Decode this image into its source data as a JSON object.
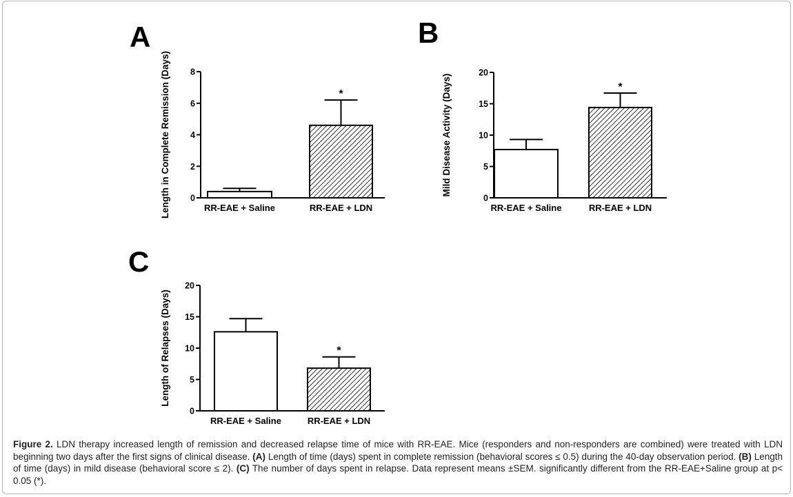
{
  "figure": {
    "caption_label": "Figure 2.",
    "caption_p1": " LDN therapy increased length of remission and decreased relapse time of mice with RR-EAE. Mice (responders and non-responders are combined) were treated with LDN beginning two days after the first signs of clinical disease. ",
    "caption_a": "(A)",
    "caption_p2": " Length of time (days) spent in complete remission (behavioral scores ≤ 0.5) during the 40-day observation period. ",
    "caption_b": "(B)",
    "caption_p3": " Length of time (days) in mild disease (behavioral score ≤ 2). ",
    "caption_c": "(C)",
    "caption_p4": " The number of days spent in relapse. Data represent means ±SEM. significantly different from the RR-EAE+Saline group at p< 0.05 (*)."
  },
  "chart_data": [
    {
      "panel": "A",
      "type": "bar",
      "ylabel": "Length in Complete Remission (Days)",
      "ylim": [
        0,
        8
      ],
      "yticks": [
        0,
        2,
        4,
        6,
        8
      ],
      "categories": [
        "RR-EAE + Saline",
        "RR-EAE + LDN"
      ],
      "values": [
        0.4,
        4.6
      ],
      "errors": [
        0.2,
        1.6
      ],
      "significance": [
        "",
        "*"
      ],
      "fills": [
        "open",
        "hatched"
      ]
    },
    {
      "panel": "B",
      "type": "bar",
      "ylabel": "Mild Disease Activity (Days)",
      "ylim": [
        0,
        20
      ],
      "yticks": [
        0,
        5,
        10,
        15,
        20
      ],
      "categories": [
        "RR-EAE + Saline",
        "RR-EAE + LDN"
      ],
      "values": [
        7.7,
        14.4
      ],
      "errors": [
        1.6,
        2.3
      ],
      "significance": [
        "",
        "*"
      ],
      "fills": [
        "open",
        "hatched"
      ]
    },
    {
      "panel": "C",
      "type": "bar",
      "ylabel": "Length of Relapses (Days)",
      "ylim": [
        0,
        20
      ],
      "yticks": [
        0,
        5,
        10,
        15,
        20
      ],
      "categories": [
        "RR-EAE + Saline",
        "RR-EAE + LDN"
      ],
      "values": [
        12.6,
        6.8
      ],
      "errors": [
        2.1,
        1.8
      ],
      "significance": [
        "",
        "*"
      ],
      "fills": [
        "open",
        "hatched"
      ]
    }
  ]
}
